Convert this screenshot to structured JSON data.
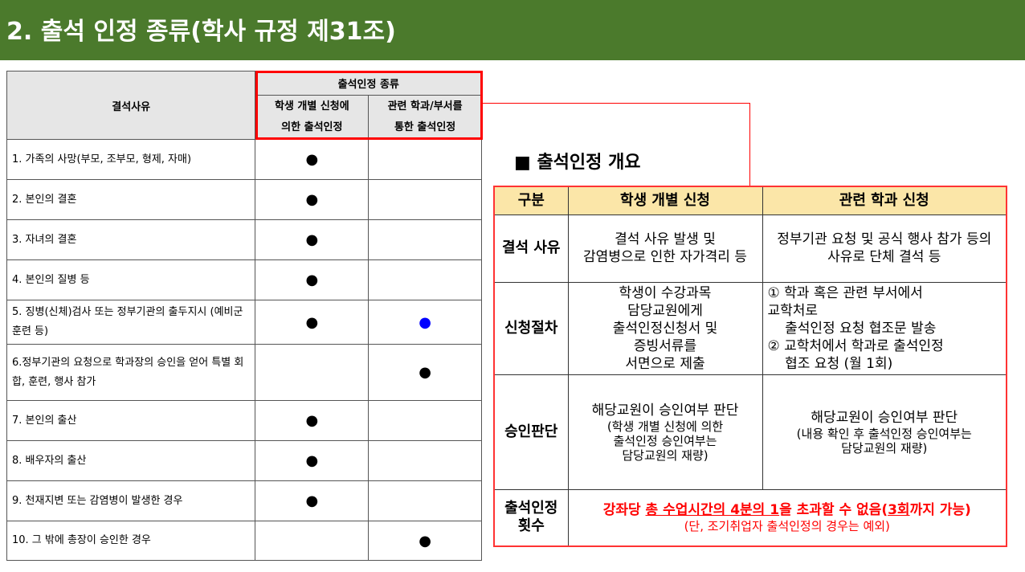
{
  "title": "2. 출석 인정 종류(학사 규정 제31조)",
  "left_table": {
    "col_reason": "결석사유",
    "group_header": "출석인정 종류",
    "col_individual": [
      "학생 개별 신청에",
      "의한 출석인정"
    ],
    "col_department": [
      "관련 학과/부서를",
      "통한 출석인정"
    ],
    "bullet": "●",
    "rows": [
      {
        "reason": "1. 가족의 사망(부모, 조부모, 형제, 자매)",
        "individual": true,
        "department": false
      },
      {
        "reason": "2.  본인의 결혼",
        "individual": true,
        "department": false
      },
      {
        "reason": "3.  자녀의 결혼",
        "individual": true,
        "department": false
      },
      {
        "reason": "4. 본인의 질병 등",
        "individual": true,
        "department": false
      },
      {
        "reason": "5. 징병(신체)검사 또는 정부기관의 출두지시 (예비군 훈련 등)",
        "individual": true,
        "department": true,
        "department_color": "#0000ff"
      },
      {
        "reason": "6.정부기관의 요청으로 학과장의 승인을 얻어 특별 회합, 훈련, 행사 참가",
        "individual": false,
        "department": true
      },
      {
        "reason": "7. 본인의 출산",
        "individual": true,
        "department": false
      },
      {
        "reason": "8. 배우자의 출산",
        "individual": true,
        "department": false
      },
      {
        "reason": "9.  천재지변 또는 감염병이 발생한 경우",
        "individual": true,
        "department": false
      },
      {
        "reason": "10. 그 밖에 총장이 승인한 경우",
        "individual": false,
        "department": true
      }
    ]
  },
  "overview": {
    "title": "■ 출석인정 개요",
    "headers": [
      "구분",
      "학생 개별 신청",
      "관련 학과 신청"
    ],
    "reason": {
      "label": "결석 사유",
      "individual": [
        "결석 사유 발생 및",
        "감염병으로 인한 자가격리 등"
      ],
      "department": [
        "정부기관 요청 및 공식 행사 참가 등의",
        "사유로  단체 결석 등"
      ]
    },
    "procedure": {
      "label": "신청절차",
      "individual": [
        "학생이 수강과목",
        "담당교원에게",
        "출석인정신청서 및",
        "증빙서류를",
        "서면으로 제출"
      ],
      "department": [
        "① 학과 혹은 관련 부서에서",
        "교학처로",
        "    출석인정 요청 협조문 발송",
        "② 교학처에서 학과로 출석인정",
        "    협조 요청 (월 1회)"
      ]
    },
    "approval": {
      "label": "승인판단",
      "individual_main": "해당교원이 승인여부 판단",
      "individual_sub": [
        "(학생 개별 신청에 의한",
        "출석인정 승인여부는",
        "담당교원의 재량)"
      ],
      "department_main": "해당교원이 승인여부 판단",
      "department_sub": [
        "(내용 확인 후 출석인정 승인여부는",
        "담당교원의 재량)"
      ]
    },
    "count": {
      "label": [
        "출석인정",
        "횟수"
      ],
      "text_a": "강좌당 ",
      "text_u1": "총 수업시간의 4분의 1",
      "text_b": "을 초과할 수 없음(",
      "text_u2": "3회",
      "text_c": "까지 가능)",
      "note": "(단, 조기취업자 출석인정의 경우는 예외)"
    }
  }
}
